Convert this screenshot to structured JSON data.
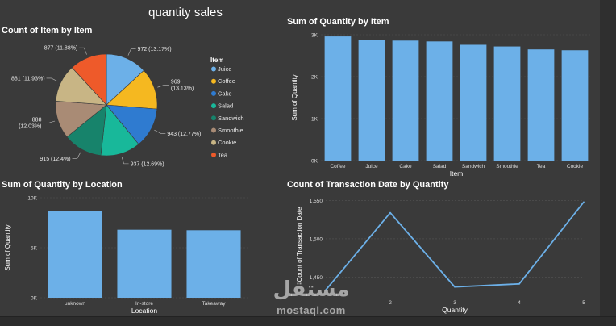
{
  "page": {
    "title": "quantity sales",
    "watermark_logo": "مستقل",
    "watermark_text": "mostaql.com"
  },
  "chart_data": [
    {
      "id": "pie-count-by-item",
      "type": "pie",
      "title": "Count of Item by Item",
      "legend_title": "Item",
      "legend_position": "right",
      "slices": [
        {
          "name": "Juice",
          "value": 972,
          "label": "972 (13.17%)",
          "color": "#6cb0e8"
        },
        {
          "name": "Coffee",
          "value": 969,
          "label": "969 (13.13%)",
          "color": "#f5b820"
        },
        {
          "name": "Cake",
          "value": 943,
          "label": "943 (12.77%)",
          "color": "#2f7bd0"
        },
        {
          "name": "Salad",
          "value": 937,
          "label": "937 (12.69%)",
          "color": "#18b89a"
        },
        {
          "name": "Sandwich",
          "value": 915,
          "label": "915 (12.4%)",
          "color": "#17836b"
        },
        {
          "name": "Smoothie",
          "value": 888,
          "label": "888 (12.03%)",
          "color": "#a98b75"
        },
        {
          "name": "Cookie",
          "value": 881,
          "label": "881 (11.93%)",
          "color": "#c8b585"
        },
        {
          "name": "Tea",
          "value": 877,
          "label": "877 (11.88%)",
          "color": "#ee5a2a"
        }
      ]
    },
    {
      "id": "bar-sum-by-item",
      "type": "bar",
      "title": "Sum of Quantity by Item",
      "xlabel": "Item",
      "ylabel": "Sum of Quantity",
      "ylim": [
        0,
        3000
      ],
      "yticks": [
        0,
        1000,
        2000,
        3000
      ],
      "ytick_labels": [
        "0K",
        "1K",
        "2K",
        "3K"
      ],
      "grid": true,
      "color": "#6cb0e8",
      "categories": [
        "Coffee",
        "Juice",
        "Cake",
        "Salad",
        "Sandwich",
        "Smoothie",
        "Tea",
        "Cookie"
      ],
      "values": [
        2960,
        2880,
        2860,
        2840,
        2760,
        2720,
        2650,
        2630
      ]
    },
    {
      "id": "bar-sum-by-location",
      "type": "bar",
      "title": "Sum of Quantity by Location",
      "xlabel": "Location",
      "ylabel": "Sum of Quantity",
      "ylim": [
        0,
        10000
      ],
      "yticks": [
        0,
        5000,
        10000
      ],
      "ytick_labels": [
        "0K",
        "5K",
        "10K"
      ],
      "grid": true,
      "color": "#6cb0e8",
      "categories": [
        "unknown",
        "In-store",
        "Takeaway"
      ],
      "values": [
        8700,
        6800,
        6750
      ]
    },
    {
      "id": "line-count-by-quantity",
      "type": "line",
      "title": "Count of Transaction Date by Quantity",
      "xlabel": "Quantity",
      "ylabel": "Count of Transaction Date",
      "xlim": [
        1,
        5
      ],
      "ylim": [
        1425,
        1560
      ],
      "yticks": [
        1450,
        1500,
        1550
      ],
      "ytick_labels": [
        "1,450",
        "1,500",
        "1,550"
      ],
      "xticks": [
        2,
        3,
        4,
        5
      ],
      "xtick_labels": [
        "2",
        "3",
        "4",
        "5"
      ],
      "grid": true,
      "color": "#6cb0e8",
      "x": [
        1,
        2,
        3,
        4,
        5
      ],
      "y": [
        1433,
        1534,
        1437,
        1441,
        1548
      ]
    }
  ]
}
